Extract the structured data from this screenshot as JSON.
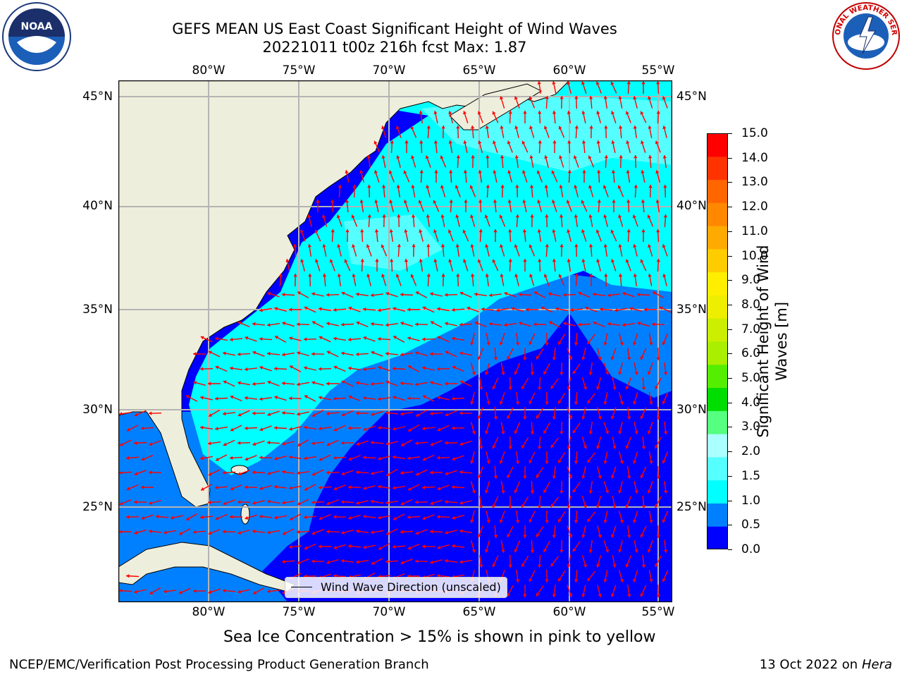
{
  "header": {
    "title_line1": "GEFS MEAN US East Coast Significant Height of Wind Waves",
    "title_line2": "20221011 t00z 216h fcst   Max: 1.87",
    "noaa_logo_text": "NOAA",
    "nws_logo_text": "NATIONAL WEATHER SERVICE"
  },
  "map": {
    "lon_labels": [
      "80°W",
      "75°W",
      "70°W",
      "65°W",
      "60°W",
      "55°W"
    ],
    "lat_labels": [
      "45°N",
      "40°N",
      "35°N",
      "30°N",
      "25°N"
    ],
    "legend_label": "Wind Wave Direction (unscaled)",
    "arrow_color": "#ff0000",
    "land_color": "#eeeedc",
    "grid_color": "#b4b4b4"
  },
  "colorbar": {
    "label": "Significant Height of Wind Waves [m]",
    "label_line1": "Significant Height of Wind",
    "label_line2": "Waves [m]",
    "ticks": [
      "0.0",
      "0.5",
      "1.0",
      "1.5",
      "2.0",
      "3.0",
      "4.0",
      "5.0",
      "6.0",
      "7.0",
      "8.0",
      "9.0",
      "10.0",
      "11.0",
      "12.0",
      "13.0",
      "14.0",
      "15.0"
    ],
    "colors": [
      "#0000ff",
      "#0080ff",
      "#00ffff",
      "#55ffff",
      "#aaffff",
      "#55ff80",
      "#00dd00",
      "#55ee00",
      "#aaee00",
      "#ccee00",
      "#eeee00",
      "#ffee00",
      "#ffcc00",
      "#ffaa00",
      "#ff8800",
      "#ff6600",
      "#ff3300",
      "#ff0000"
    ]
  },
  "note": "Sea Ice Concentration > 15% is shown in pink to yellow",
  "footer": {
    "left": "NCEP/EMC/Verification Post Processing Product Generation Branch",
    "right_prefix": "13 Oct 2022 on",
    "right_host": "Hera"
  }
}
